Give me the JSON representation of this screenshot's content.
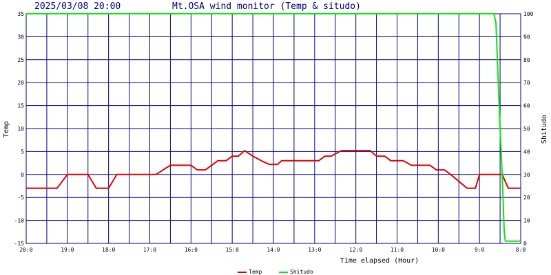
{
  "chart_data": {
    "type": "line",
    "title_left": "2025/03/08 20:00",
    "title": "Mt.OSA wind monitor (Temp & situdo)",
    "xlabel": "Time elapsed (Hour)",
    "ylabel_left": "Temp",
    "ylabel_right": "Shitudo",
    "y_left_lim": [
      -15,
      35
    ],
    "y_left_ticks": [
      "-15",
      "-10",
      "-5",
      "0",
      "5",
      "10",
      "15",
      "20",
      "25",
      "30",
      "35"
    ],
    "y_right_lim": [
      0,
      100
    ],
    "y_right_ticks": [
      "0",
      "10",
      "20",
      "30",
      "40",
      "50",
      "60",
      "70",
      "80",
      "90",
      "100"
    ],
    "x_lim": [
      0,
      24
    ],
    "x_tick_labels": [
      {
        "label": "20:0",
        "x": 0
      },
      {
        "label": "19:0",
        "x": 2
      },
      {
        "label": "18:0",
        "x": 4
      },
      {
        "label": "17:0",
        "x": 6
      },
      {
        "label": "16:0",
        "x": 8
      },
      {
        "label": "15:0",
        "x": 10
      },
      {
        "label": "14:0",
        "x": 12
      },
      {
        "label": "13:0",
        "x": 14
      },
      {
        "label": "12:0",
        "x": 16
      },
      {
        "label": "11:0",
        "x": 18
      },
      {
        "label": "10:0",
        "x": 20
      },
      {
        "label": "9:0",
        "x": 22
      },
      {
        "label": "8:0",
        "x": 24
      }
    ],
    "grid": true,
    "legend_position": "bottom",
    "series": [
      {
        "name": "Temp",
        "axis": "left",
        "color": "#e00000",
        "points": [
          [
            0,
            -3
          ],
          [
            1.5,
            -3
          ],
          [
            2,
            0
          ],
          [
            3,
            0
          ],
          [
            3.4,
            -3
          ],
          [
            4,
            -3
          ],
          [
            4.4,
            0
          ],
          [
            6.3,
            0
          ],
          [
            7,
            2
          ],
          [
            8,
            2
          ],
          [
            8.3,
            1
          ],
          [
            8.7,
            1
          ],
          [
            9.3,
            3
          ],
          [
            9.7,
            3
          ],
          [
            10,
            4
          ],
          [
            10.3,
            4
          ],
          [
            10.6,
            5.2
          ],
          [
            11,
            4
          ],
          [
            11.5,
            2.8
          ],
          [
            11.8,
            2.2
          ],
          [
            12.2,
            2.2
          ],
          [
            12.4,
            3
          ],
          [
            14.2,
            3
          ],
          [
            14.5,
            4
          ],
          [
            14.8,
            4
          ],
          [
            15.3,
            5.2
          ],
          [
            16.7,
            5.2
          ],
          [
            17,
            4
          ],
          [
            17.4,
            4
          ],
          [
            17.7,
            3
          ],
          [
            18.3,
            3
          ],
          [
            18.7,
            2
          ],
          [
            19.6,
            2
          ],
          [
            19.9,
            1
          ],
          [
            20.3,
            1
          ],
          [
            20.6,
            0
          ],
          [
            21.4,
            -3
          ],
          [
            21.8,
            -3
          ],
          [
            22,
            0
          ],
          [
            23.1,
            0
          ],
          [
            23.4,
            -3
          ],
          [
            24,
            -3
          ]
        ]
      },
      {
        "name": "Shitudo",
        "axis": "right",
        "color": "#00ee00",
        "points": [
          [
            0,
            100
          ],
          [
            22.7,
            100
          ],
          [
            22.8,
            96
          ],
          [
            23.0,
            50
          ],
          [
            23.1,
            30
          ],
          [
            23.2,
            5
          ],
          [
            23.25,
            1
          ],
          [
            24,
            1
          ]
        ]
      }
    ]
  }
}
